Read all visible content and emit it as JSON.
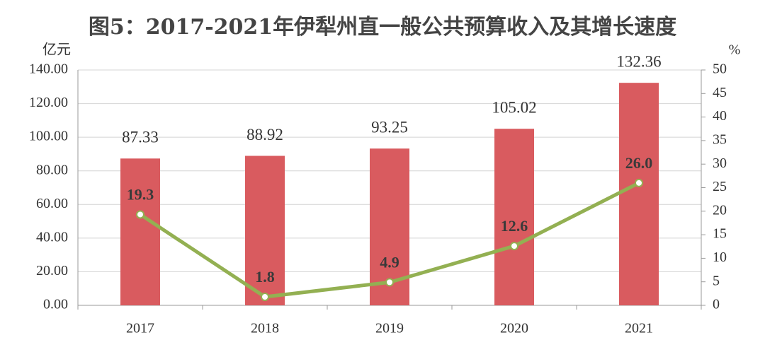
{
  "chart_data": {
    "type": "bar",
    "title": "图5：2017-2021年伊犁州直一般公共预算收入及其增长速度",
    "ylabel": "亿元",
    "y2label": "%",
    "categories": [
      "2017",
      "2018",
      "2019",
      "2020",
      "2021"
    ],
    "series": [
      {
        "type": "bar",
        "color": "#d95b5f",
        "values": [
          87.33,
          88.92,
          93.25,
          105.02,
          132.36
        ]
      },
      {
        "type": "line",
        "axis": "y2",
        "color": "#93b052",
        "values": [
          19.3,
          1.8,
          4.9,
          12.6,
          26.0
        ],
        "value_labels": [
          "19.3",
          "1.8",
          "4.9",
          "12.6",
          "26.0"
        ]
      }
    ],
    "ylim": [
      0,
      140
    ],
    "yticks": [
      {
        "value": 0,
        "label": "0.00"
      },
      {
        "value": 20,
        "label": "20.00"
      },
      {
        "value": 40,
        "label": "40.00"
      },
      {
        "value": 60,
        "label": "60.00"
      },
      {
        "value": 80,
        "label": "80.00"
      },
      {
        "value": 100,
        "label": "100.00"
      },
      {
        "value": 120,
        "label": "120.00"
      },
      {
        "value": 140,
        "label": "140.00"
      }
    ],
    "y2lim": [
      0,
      50
    ],
    "y2ticks": [
      0,
      5,
      10,
      15,
      20,
      25,
      30,
      35,
      40,
      45,
      50
    ],
    "grid": true
  }
}
